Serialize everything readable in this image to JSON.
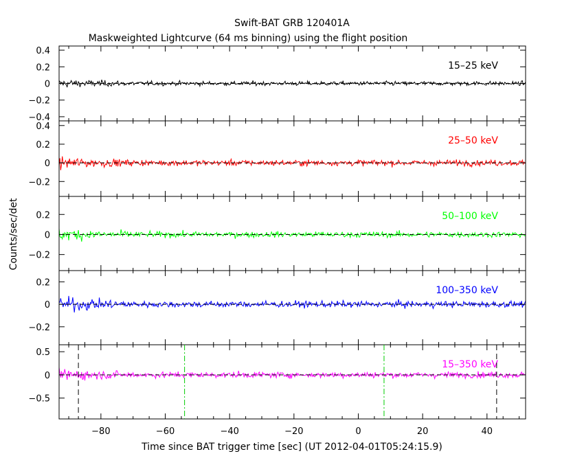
{
  "header": {
    "title": "Swift-BAT GRB 120401A",
    "subtitle": "Maskweighted Lightcurve (64 ms binning) using the flight position"
  },
  "chart_data": {
    "type": "line",
    "title": "Swift-BAT GRB 120401A",
    "subtitle": "Maskweighted Lightcurve (64 ms binning) using the flight position",
    "xlabel": "Time since BAT trigger time [sec] (UT 2012-04-01T05:24:15.9)",
    "ylabel": "Counts/sec/det",
    "xlim": [
      -93,
      52
    ],
    "xticks": [
      -80,
      -60,
      -40,
      -20,
      0,
      20,
      40
    ],
    "xtick_labels": [
      "−80",
      "−60",
      "−40",
      "−20",
      "0",
      "20",
      "40"
    ],
    "series": [
      {
        "name": "15–25 keV",
        "color": "#000000",
        "ylim": [
          -0.45,
          0.45
        ],
        "yticks": [
          0.4,
          0.2,
          0,
          -0.2,
          -0.4
        ],
        "ytick_labels": [
          "0.4",
          "0.2",
          "0",
          "−0.2",
          "−0.4"
        ],
        "noise_amplitude_early": 0.08,
        "noise_amplitude_late": 0.04,
        "baseline": 0
      },
      {
        "name": "25–50 keV",
        "color": "#ff0000",
        "ylim": [
          -0.36,
          0.45
        ],
        "yticks": [
          0.4,
          0.2,
          0,
          -0.2
        ],
        "ytick_labels": [
          "0.4",
          "0.2",
          "0",
          "−0.2"
        ],
        "noise_amplitude_early": 0.1,
        "noise_amplitude_late": 0.05,
        "baseline": 0
      },
      {
        "name": "50–100 keV",
        "color": "#00ff00",
        "ylim": [
          -0.36,
          0.38
        ],
        "yticks": [
          0.2,
          0,
          -0.2
        ],
        "ytick_labels": [
          "0.2",
          "0",
          "−0.2"
        ],
        "noise_amplitude_early": 0.1,
        "noise_amplitude_late": 0.045,
        "baseline": 0
      },
      {
        "name": "100–350 keV",
        "color": "#0000ff",
        "ylim": [
          -0.36,
          0.3
        ],
        "yticks": [
          0.2,
          0,
          -0.2
        ],
        "ytick_labels": [
          "0.2",
          "0",
          "−0.2"
        ],
        "noise_amplitude_early": 0.1,
        "noise_amplitude_late": 0.045,
        "baseline": 0
      },
      {
        "name": "15–350 keV",
        "color": "#ff00ff",
        "ylim": [
          -0.95,
          0.65
        ],
        "yticks": [
          0.5,
          0,
          -0.5
        ],
        "ytick_labels": [
          "0.5",
          "0",
          "−0.5"
        ],
        "noise_amplitude_early": 0.2,
        "noise_amplitude_late": 0.1,
        "baseline": 0
      }
    ],
    "markers": {
      "black_dashed_x": [
        -87,
        43
      ],
      "green_dashdot_x": [
        -54,
        8
      ]
    },
    "grid": false,
    "legend_placement": "top-right of each panel"
  }
}
